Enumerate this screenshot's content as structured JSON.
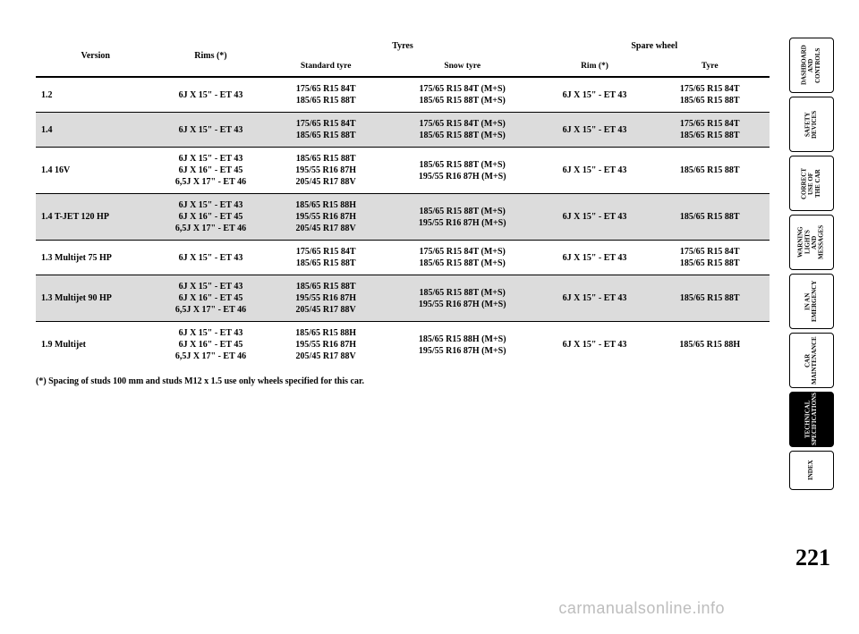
{
  "header": {
    "version": "Version",
    "rims": "Rims  (*)",
    "tyres": "Tyres",
    "spare": "Spare wheel",
    "standard": "Standard tyre",
    "snow": "Snow tyre",
    "rim2": "Rim (*)",
    "tyre": "Tyre"
  },
  "rows": [
    {
      "version": "1.2",
      "rims": "6J X 15\" - ET 43",
      "std": "175/65 R15 84T\n185/65 R15 88T",
      "snow": "175/65 R15 84T (M+S)\n185/65 R15 88T (M+S)",
      "srim": "6J X 15\" - ET 43",
      "styre": "175/65 R15 84T\n185/65 R15 88T"
    },
    {
      "version": "1.4",
      "rims": "6J X 15\" - ET 43",
      "std": "175/65 R15 84T\n185/65 R15 88T",
      "snow": "175/65 R15 84T (M+S)\n185/65 R15 88T (M+S)",
      "srim": "6J X 15\" - ET 43",
      "styre": "175/65 R15 84T\n185/65 R15 88T"
    },
    {
      "version": "1.4 16V",
      "rims": "6J X 15\" - ET 43\n6J X 16\" - ET 45\n6,5J X 17\" - ET 46",
      "std": "185/65 R15 88T\n195/55 R16 87H\n205/45 R17 88V",
      "snow": "185/65 R15 88T (M+S)\n195/55 R16 87H (M+S)",
      "srim": "6J X 15\" - ET 43",
      "styre": "185/65 R15 88T"
    },
    {
      "version": "1.4 T-JET 120 HP",
      "rims": "6J X 15\" - ET 43\n6J X 16\" - ET 45\n6,5J X 17\" - ET 46",
      "std": "185/65 R15 88H\n195/55 R16 87H\n205/45 R17 88V",
      "snow": "185/65 R15 88T (M+S)\n195/55 R16 87H (M+S)",
      "srim": "6J X 15\" - ET 43",
      "styre": "185/65 R15 88T"
    },
    {
      "version": "1.3 Multijet 75 HP",
      "rims": "6J X 15\" - ET 43",
      "std": "175/65 R15 84T\n185/65 R15 88T",
      "snow": "175/65 R15 84T (M+S)\n185/65 R15 88T (M+S)",
      "srim": "6J X 15\" - ET 43",
      "styre": "175/65 R15 84T\n185/65 R15 88T"
    },
    {
      "version": "1.3 Multijet 90 HP",
      "rims": "6J X 15\" - ET 43\n6J X 16\" - ET 45\n6,5J X 17\" - ET 46",
      "std": "185/65 R15 88T\n195/55 R16 87H\n205/45 R17 88V",
      "snow": "185/65 R15 88T (M+S)\n195/55 R16 87H (M+S)",
      "srim": "6J X 15\" - ET 43",
      "styre": "185/65 R15 88T"
    },
    {
      "version": "1.9 Multijet",
      "rims": "6J X 15\" - ET 43\n6J X 16\" - ET 45\n6,5J X 17\" - ET 46",
      "std": "185/65 R15 88H\n195/55 R16 87H\n205/45 R17 88V",
      "snow": "185/65 R15 88H (M+S)\n195/55 R16 87H (M+S)",
      "srim": "6J X 15\" - ET 43",
      "styre": "185/65 R15 88H"
    }
  ],
  "footnote": "(*) Spacing of studs 100 mm and studs M12 x 1.5 use only wheels specified for this car.",
  "tabs": [
    "DASHBOARD AND CONTROLS",
    "SAFETY DEVICES",
    "CORRECT USE OF THE CAR",
    "WARNING LIGHTS AND MESSAGES",
    "IN AN EMERGENCY",
    "CAR MAINTENANCE",
    "TECHNICAL SPECIFICATIONS",
    "INDEX"
  ],
  "active_tab": 6,
  "pagenum": "221",
  "watermark": "carmanualsonline.info"
}
